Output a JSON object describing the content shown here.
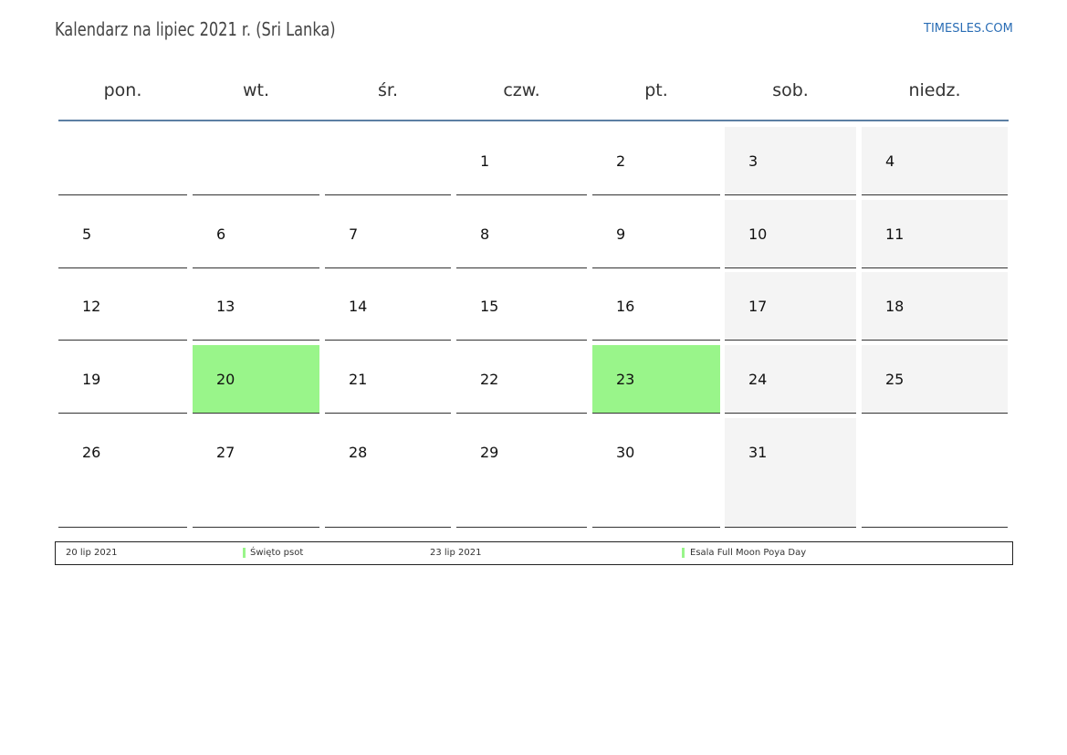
{
  "header": {
    "title": "Kalendarz na lipiec 2021 r. (Sri Lanka)",
    "site": "TIMESLES.COM"
  },
  "weekdays": [
    "pon.",
    "wt.",
    "śr.",
    "czw.",
    "pt.",
    "sob.",
    "niedz."
  ],
  "weekend_color": "#f4f4f4",
  "holiday_color": "#99f58a",
  "weeks": [
    [
      null,
      null,
      null,
      1,
      2,
      3,
      4
    ],
    [
      5,
      6,
      7,
      8,
      9,
      10,
      11
    ],
    [
      12,
      13,
      14,
      15,
      16,
      17,
      18
    ],
    [
      19,
      {
        "day": 20,
        "holiday": true
      },
      21,
      22,
      {
        "day": 23,
        "holiday": true
      },
      24,
      25
    ],
    [
      26,
      27,
      28,
      29,
      30,
      31,
      null
    ]
  ],
  "holidays": [
    {
      "date": "20 lip 2021",
      "name": "Święto psot"
    },
    {
      "date": "23 lip 2021",
      "name": "Esala Full Moon Poya Day"
    }
  ]
}
